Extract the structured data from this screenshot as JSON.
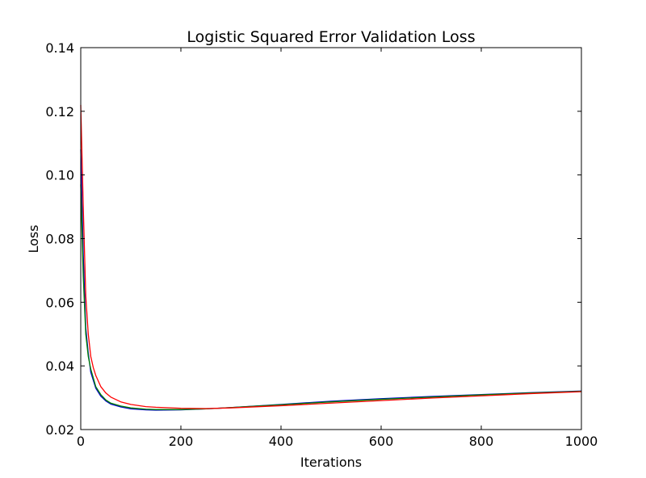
{
  "chart_data": {
    "type": "line",
    "title": "Logistic Squared Error Validation Loss",
    "xlabel": "Iterations",
    "ylabel": "Loss",
    "xlim": [
      0,
      1000
    ],
    "ylim": [
      0.02,
      0.14
    ],
    "xticks": [
      0,
      200,
      400,
      600,
      800,
      1000
    ],
    "xtick_labels": [
      "0",
      "200",
      "400",
      "600",
      "800",
      "1000"
    ],
    "yticks": [
      0.02,
      0.04,
      0.06,
      0.08,
      0.1,
      0.12,
      0.14
    ],
    "ytick_labels": [
      "0.02",
      "0.04",
      "0.06",
      "0.08",
      "0.10",
      "0.12",
      "0.14"
    ],
    "grid": false,
    "legend": "none",
    "series": [
      {
        "color": "#0000cc",
        "x": [
          0,
          5,
          10,
          15,
          20,
          30,
          40,
          50,
          60,
          80,
          100,
          130,
          150,
          200,
          250,
          300,
          400,
          500,
          600,
          700,
          800,
          900,
          1000
        ],
        "y": [
          0.108,
          0.075,
          0.052,
          0.044,
          0.038,
          0.033,
          0.0305,
          0.029,
          0.028,
          0.0271,
          0.0265,
          0.0262,
          0.0261,
          0.0262,
          0.0265,
          0.0269,
          0.0279,
          0.0289,
          0.0297,
          0.0304,
          0.031,
          0.0316,
          0.0321
        ]
      },
      {
        "color": "#008000",
        "x": [
          0,
          5,
          10,
          15,
          20,
          30,
          40,
          50,
          60,
          80,
          100,
          130,
          150,
          200,
          250,
          300,
          400,
          500,
          600,
          700,
          800,
          900,
          1000
        ],
        "y": [
          0.097,
          0.068,
          0.05,
          0.043,
          0.039,
          0.0335,
          0.031,
          0.0293,
          0.0283,
          0.0274,
          0.0268,
          0.0264,
          0.0263,
          0.0263,
          0.0265,
          0.0269,
          0.0278,
          0.0287,
          0.0295,
          0.0302,
          0.0309,
          0.0315,
          0.032
        ]
      },
      {
        "color": "#ff0000",
        "x": [
          0,
          5,
          10,
          15,
          20,
          25,
          30,
          40,
          50,
          60,
          80,
          100,
          130,
          150,
          200,
          250,
          300,
          400,
          500,
          600,
          700,
          800,
          900,
          1000
        ],
        "y": [
          0.122,
          0.09,
          0.062,
          0.05,
          0.043,
          0.0395,
          0.037,
          0.0335,
          0.0315,
          0.0302,
          0.0287,
          0.0279,
          0.0272,
          0.027,
          0.0267,
          0.0266,
          0.0268,
          0.0275,
          0.0283,
          0.0291,
          0.0299,
          0.0306,
          0.0313,
          0.0319
        ]
      }
    ]
  }
}
